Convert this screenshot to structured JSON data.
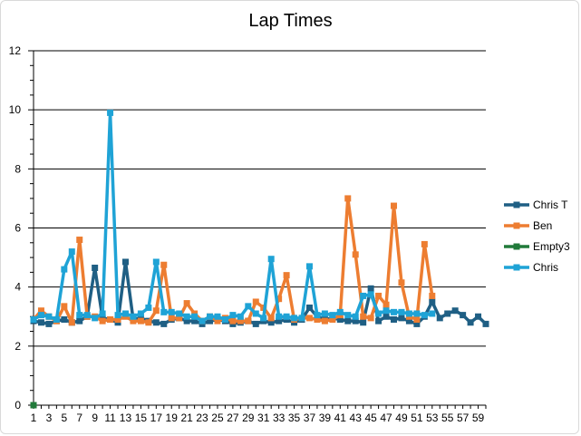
{
  "chart_data": {
    "type": "line",
    "title": "Lap Times",
    "xlabel": "",
    "ylabel": "",
    "ylim": [
      0,
      12
    ],
    "yticks": [
      0,
      2,
      4,
      6,
      8,
      10,
      12
    ],
    "xlim": [
      1,
      60
    ],
    "xtick_labels": [
      "1",
      "3",
      "5",
      "7",
      "9",
      "11",
      "13",
      "15",
      "17",
      "19",
      "21",
      "23",
      "25",
      "27",
      "29",
      "31",
      "33",
      "35",
      "37",
      "39",
      "41",
      "43",
      "45",
      "47",
      "49",
      "51",
      "53",
      "55",
      "57",
      "59"
    ],
    "grid": "horizontal",
    "legend_position": "right",
    "colors": {
      "Chris T": "#1f5f84",
      "Ben": "#ed7d31",
      "Empty3": "#217a3a",
      "Chris": "#1fa3d6",
      "gridline": "#000000",
      "axis": "#000000"
    },
    "series": [
      {
        "name": "Chris T",
        "x": [
          1,
          2,
          3,
          4,
          5,
          6,
          7,
          8,
          9,
          10,
          11,
          12,
          13,
          14,
          15,
          16,
          17,
          18,
          19,
          20,
          21,
          22,
          23,
          24,
          25,
          26,
          27,
          28,
          29,
          30,
          31,
          32,
          33,
          34,
          35,
          36,
          37,
          38,
          39,
          40,
          41,
          42,
          43,
          44,
          45,
          46,
          47,
          48,
          49,
          50,
          51,
          52,
          53,
          54,
          55,
          56,
          57,
          58,
          59,
          60
        ],
        "values": [
          2.85,
          2.8,
          2.75,
          2.85,
          2.9,
          2.8,
          2.85,
          3.0,
          4.65,
          2.95,
          2.9,
          2.8,
          4.85,
          2.9,
          2.95,
          2.85,
          2.8,
          2.75,
          2.9,
          2.95,
          2.85,
          2.85,
          2.75,
          2.85,
          2.9,
          2.85,
          2.75,
          2.8,
          2.85,
          2.75,
          2.85,
          2.8,
          2.85,
          2.9,
          2.8,
          2.9,
          3.3,
          3.0,
          2.9,
          2.95,
          2.9,
          2.85,
          2.85,
          2.8,
          3.95,
          2.85,
          3.0,
          2.9,
          2.95,
          2.85,
          2.75,
          3.0,
          3.5,
          2.95,
          3.1,
          3.2,
          3.05,
          2.8,
          3.0,
          2.75
        ]
      },
      {
        "name": "Ben",
        "x": [
          1,
          2,
          3,
          4,
          5,
          6,
          7,
          8,
          9,
          10,
          11,
          12,
          13,
          14,
          15,
          16,
          17,
          18,
          19,
          20,
          21,
          22,
          23,
          24,
          25,
          26,
          27,
          28,
          29,
          30,
          31,
          32,
          33,
          34,
          35,
          36,
          37,
          38,
          39,
          40,
          41,
          42,
          43,
          44,
          45,
          46,
          47,
          48,
          49,
          50,
          51,
          52,
          53
        ],
        "values": [
          2.9,
          3.2,
          3.0,
          2.85,
          3.35,
          2.8,
          5.6,
          3.0,
          3.0,
          2.85,
          2.9,
          2.9,
          3.0,
          2.85,
          2.85,
          2.8,
          3.2,
          4.75,
          2.95,
          2.95,
          3.45,
          3.1,
          2.85,
          3.0,
          2.85,
          2.95,
          2.85,
          2.85,
          2.85,
          3.5,
          3.3,
          2.95,
          3.6,
          4.4,
          2.9,
          2.95,
          2.95,
          2.9,
          2.85,
          2.9,
          3.05,
          7.0,
          5.1,
          3.0,
          2.95,
          3.7,
          3.4,
          6.75,
          4.15,
          3.0,
          2.9,
          5.45,
          3.7
        ]
      },
      {
        "name": "Empty3",
        "x": [
          1
        ],
        "values": [
          0
        ]
      },
      {
        "name": "Chris",
        "x": [
          1,
          2,
          3,
          4,
          5,
          6,
          7,
          8,
          9,
          10,
          11,
          12,
          13,
          14,
          15,
          16,
          17,
          18,
          19,
          20,
          21,
          22,
          23,
          24,
          25,
          26,
          27,
          28,
          29,
          30,
          31,
          32,
          33,
          34,
          35,
          36,
          37,
          38,
          39,
          40,
          41,
          42,
          43,
          44,
          45,
          46,
          47,
          48,
          49,
          50,
          51,
          52,
          53
        ],
        "values": [
          2.9,
          3.05,
          3.0,
          2.9,
          4.6,
          5.2,
          3.05,
          3.05,
          2.95,
          3.1,
          9.9,
          3.05,
          3.1,
          3.0,
          3.1,
          3.3,
          4.85,
          3.15,
          3.15,
          3.1,
          3.0,
          3.0,
          2.85,
          3.0,
          3.0,
          2.9,
          3.05,
          3.0,
          3.35,
          3.1,
          2.95,
          4.95,
          3.0,
          3.0,
          2.95,
          2.95,
          4.7,
          3.05,
          3.1,
          3.05,
          3.15,
          3.05,
          3.0,
          3.7,
          3.75,
          3.1,
          3.2,
          3.15,
          3.15,
          3.1,
          3.1,
          3.05,
          3.1
        ]
      }
    ]
  }
}
